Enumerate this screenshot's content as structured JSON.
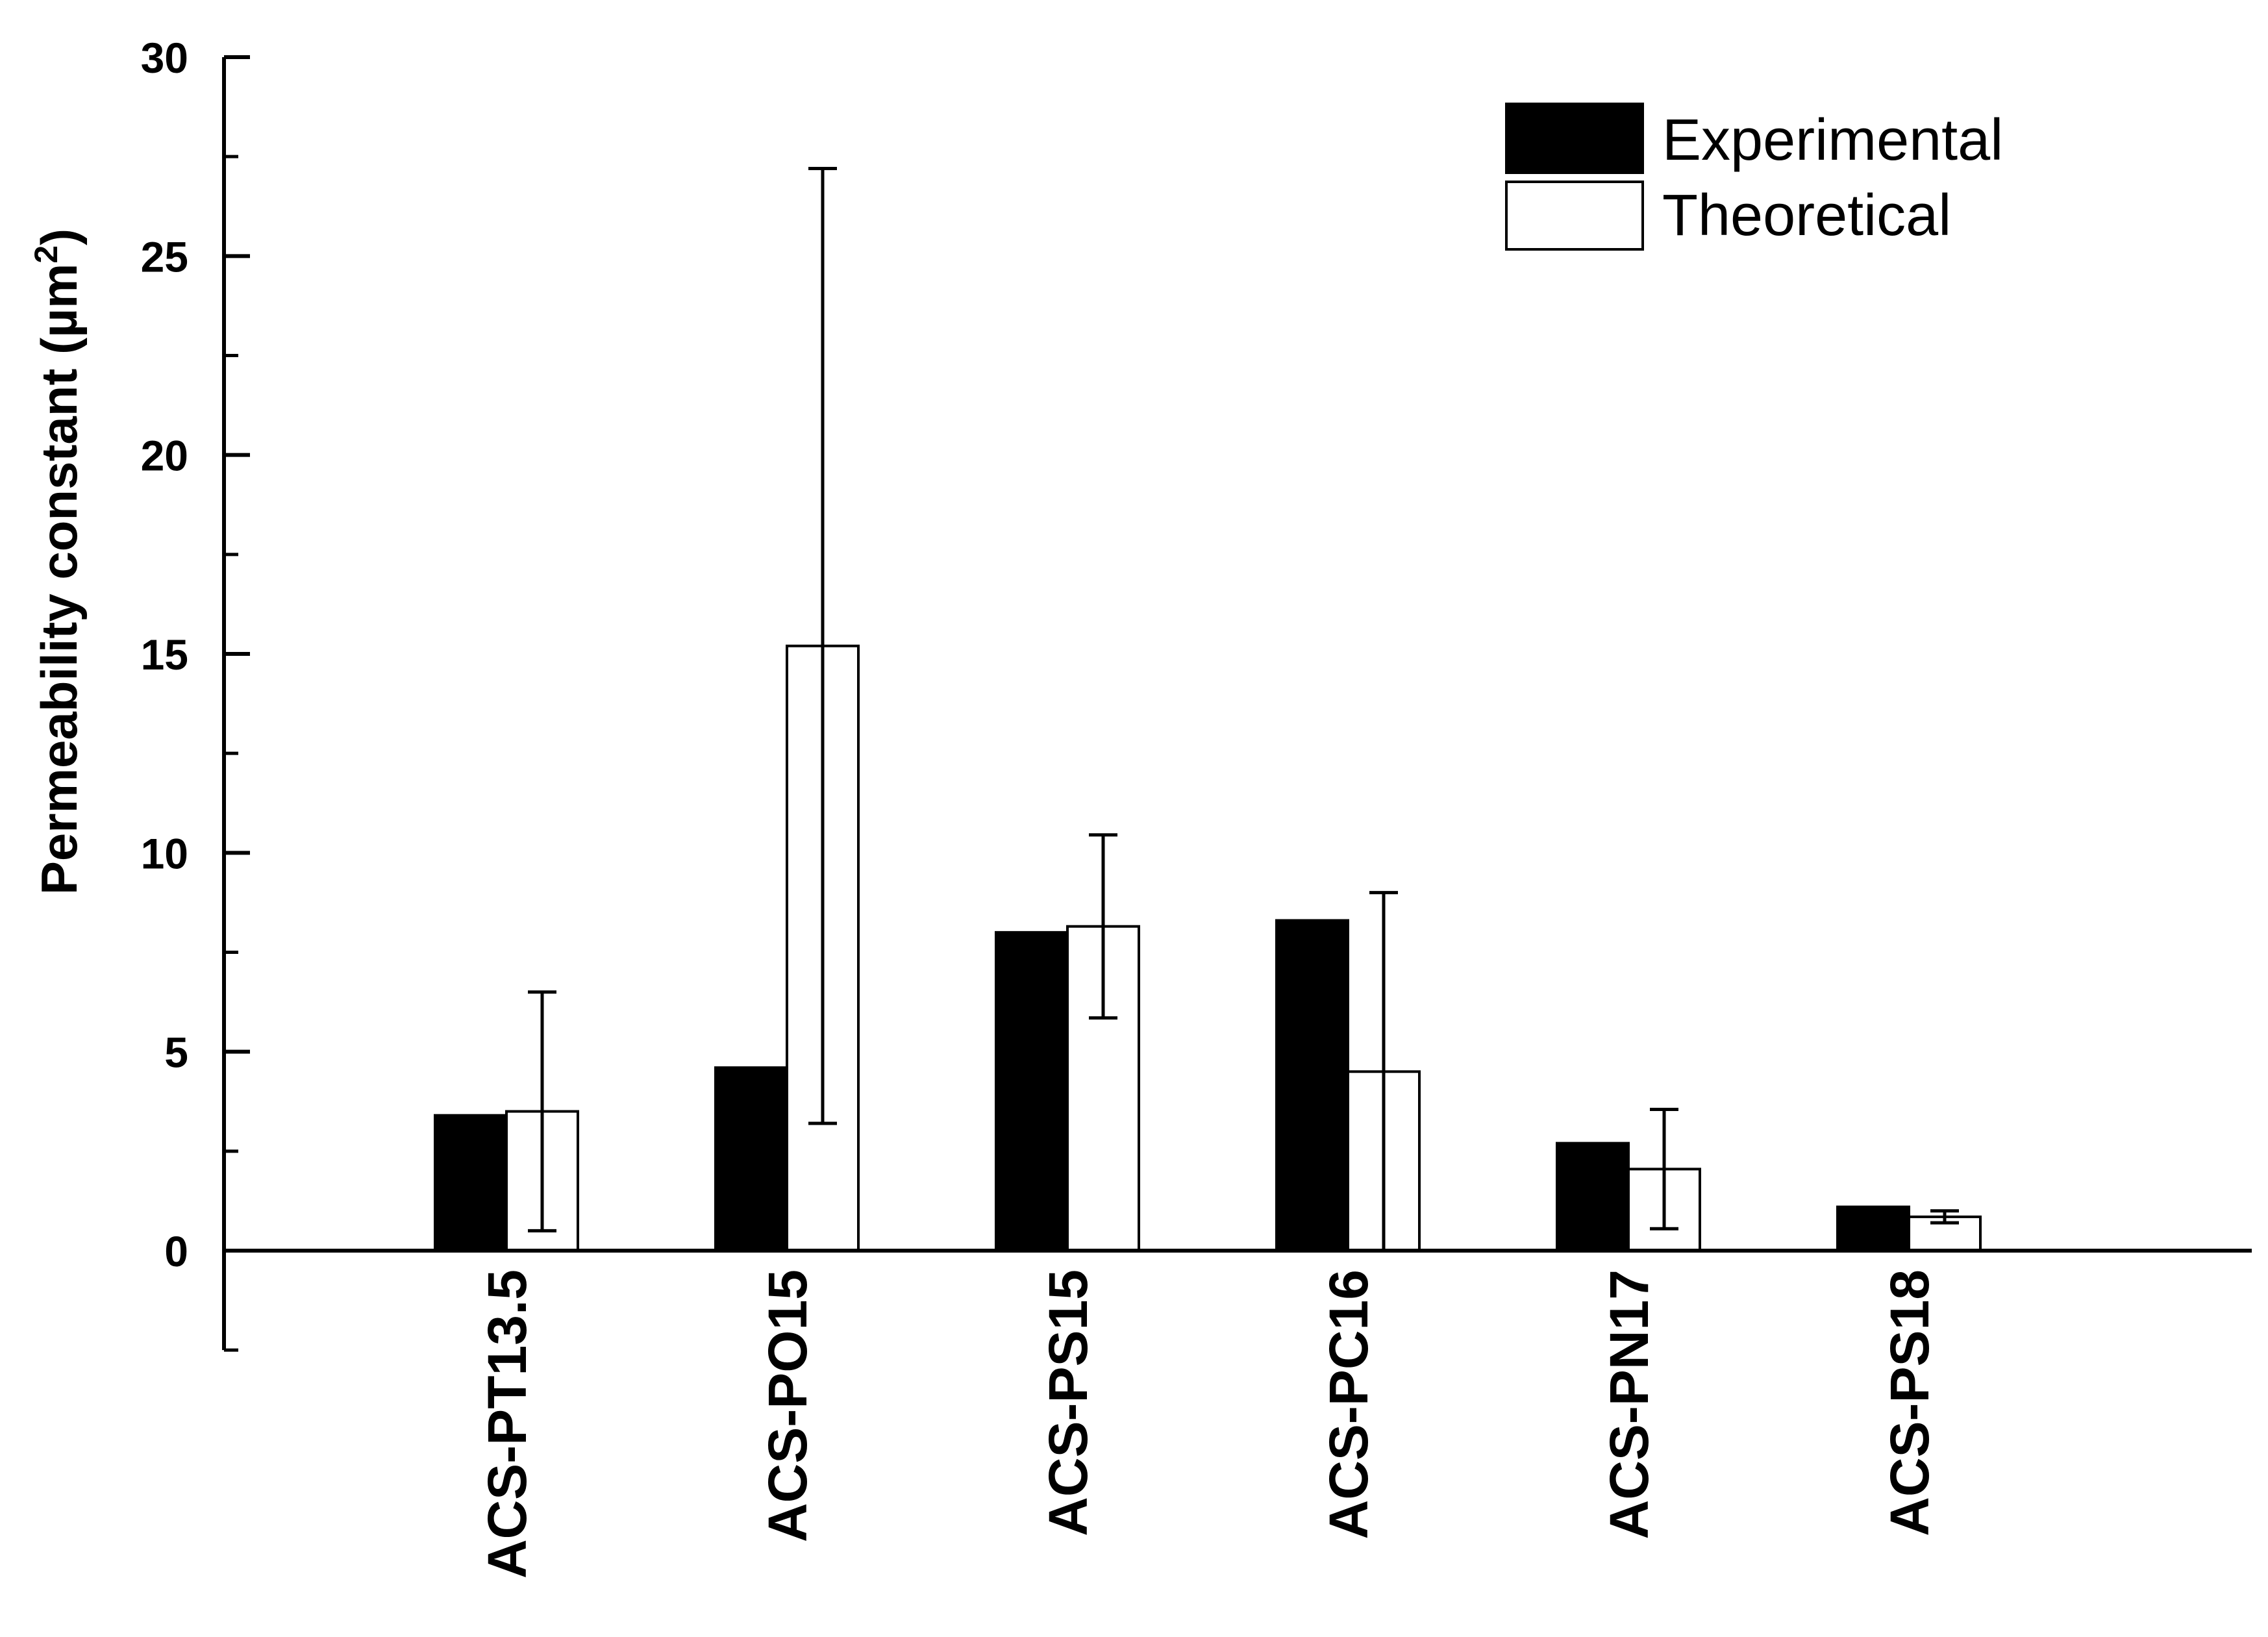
{
  "chart_data": {
    "type": "bar",
    "title": "",
    "xlabel": "",
    "ylabel": "Permeability constant (µm",
    "ylabel_sup": "2",
    "ylabel_close": ")",
    "ylim": [
      -2.5,
      30
    ],
    "yticks": [
      0,
      5,
      10,
      15,
      20,
      25,
      30
    ],
    "minor_tick_step": 2.5,
    "categories": [
      "ACS-PT13.5",
      "ACS-PO15",
      "ACS-PS15",
      "ACS-PC16",
      "ACS-PN17",
      "ACS-PS18"
    ],
    "series": [
      {
        "name": "Experimental",
        "fill": "#000000",
        "values": [
          3.4,
          4.6,
          8.0,
          8.3,
          2.7,
          1.1
        ],
        "error": null
      },
      {
        "name": "Theoretical",
        "fill": "#ffffff",
        "values": [
          3.5,
          15.2,
          8.15,
          4.5,
          2.05,
          0.85
        ],
        "error": [
          3.0,
          12.0,
          2.3,
          4.5,
          1.5,
          0.15
        ]
      }
    ],
    "legend": {
      "position": "top-right"
    },
    "grid": false
  }
}
